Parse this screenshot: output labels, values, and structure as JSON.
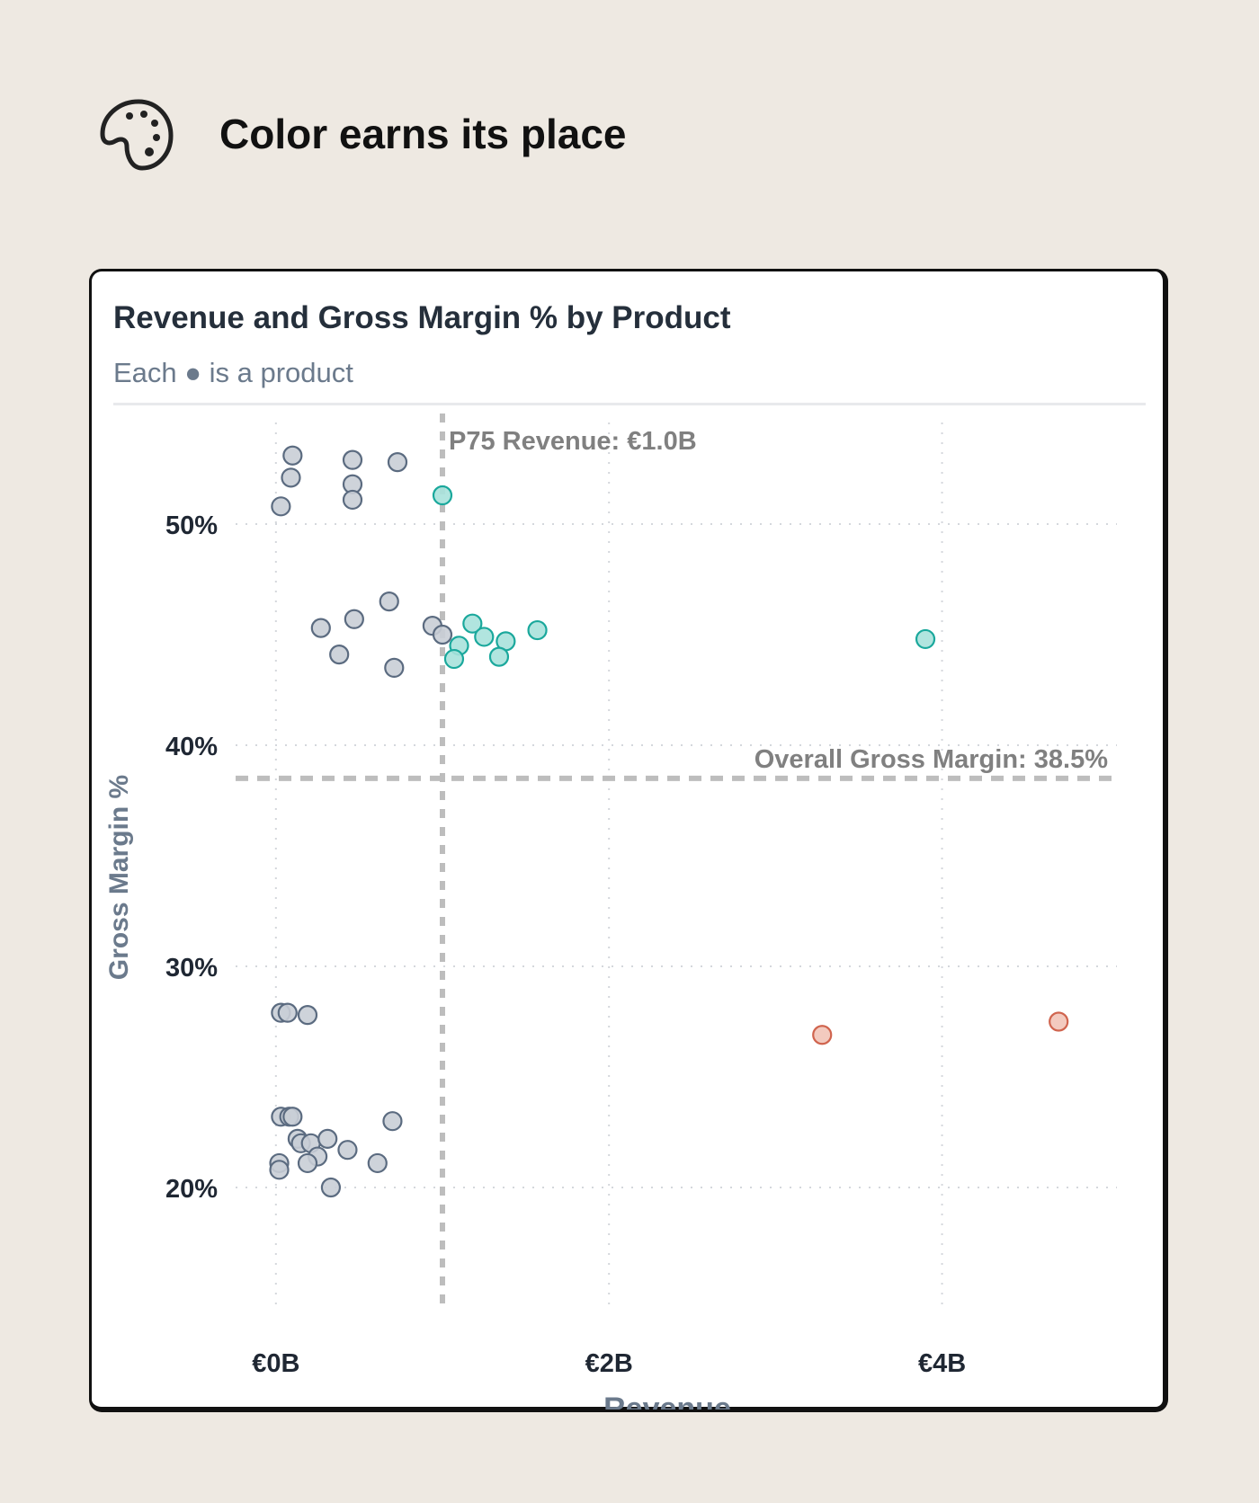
{
  "header": {
    "title": "Color earns its place",
    "icon": "palette-icon"
  },
  "chart_data": {
    "type": "scatter",
    "title": "Revenue and Gross Margin % by Product",
    "subtitle": "Each ● is a product",
    "xlabel": "Revenue",
    "ylabel": "Gross Margin %",
    "xlim": [
      -0.35,
      5.05
    ],
    "ylim": [
      15,
      55
    ],
    "x_ticks": [
      {
        "value": 0,
        "label": "€0B"
      },
      {
        "value": 2,
        "label": "€2B"
      },
      {
        "value": 4,
        "label": "€4B"
      }
    ],
    "y_ticks": [
      {
        "value": 20,
        "label": "20%"
      },
      {
        "value": 30,
        "label": "30%"
      },
      {
        "value": 40,
        "label": "40%"
      },
      {
        "value": 50,
        "label": "50%"
      }
    ],
    "grid": true,
    "reference_lines": [
      {
        "axis": "x",
        "value": 1.0,
        "label": "P75 Revenue: €1.0B"
      },
      {
        "axis": "y",
        "value": 38.5,
        "label": "Overall Gross Margin: 38.5%"
      }
    ],
    "colors": {
      "default": "#c9ced6",
      "default_stroke": "#5b6b80",
      "high_margin_high_revenue": "#a8e2dc",
      "high_margin_high_revenue_stroke": "#1aa89c",
      "low_margin_high_revenue": "#f2c4b8",
      "low_margin_high_revenue_stroke": "#d0644e"
    },
    "points": [
      {
        "x": 0.1,
        "y": 53.1,
        "group": "default"
      },
      {
        "x": 0.46,
        "y": 52.9,
        "group": "default"
      },
      {
        "x": 0.73,
        "y": 52.8,
        "group": "default"
      },
      {
        "x": 0.09,
        "y": 52.1,
        "group": "default"
      },
      {
        "x": 0.46,
        "y": 51.8,
        "group": "default"
      },
      {
        "x": 0.46,
        "y": 51.1,
        "group": "default"
      },
      {
        "x": 0.03,
        "y": 50.8,
        "group": "default"
      },
      {
        "x": 1.0,
        "y": 51.3,
        "group": "high_margin_high_revenue"
      },
      {
        "x": 0.68,
        "y": 46.5,
        "group": "default"
      },
      {
        "x": 0.47,
        "y": 45.7,
        "group": "default"
      },
      {
        "x": 0.27,
        "y": 45.3,
        "group": "default"
      },
      {
        "x": 0.94,
        "y": 45.4,
        "group": "default"
      },
      {
        "x": 1.0,
        "y": 45.0,
        "group": "default"
      },
      {
        "x": 0.38,
        "y": 44.1,
        "group": "default"
      },
      {
        "x": 0.71,
        "y": 43.5,
        "group": "default"
      },
      {
        "x": 1.18,
        "y": 45.5,
        "group": "high_margin_high_revenue"
      },
      {
        "x": 1.57,
        "y": 45.2,
        "group": "high_margin_high_revenue"
      },
      {
        "x": 1.25,
        "y": 44.9,
        "group": "high_margin_high_revenue"
      },
      {
        "x": 1.38,
        "y": 44.7,
        "group": "high_margin_high_revenue"
      },
      {
        "x": 1.1,
        "y": 44.5,
        "group": "high_margin_high_revenue"
      },
      {
        "x": 1.34,
        "y": 44.0,
        "group": "high_margin_high_revenue"
      },
      {
        "x": 1.07,
        "y": 43.9,
        "group": "high_margin_high_revenue"
      },
      {
        "x": 3.9,
        "y": 44.8,
        "group": "high_margin_high_revenue"
      },
      {
        "x": 0.03,
        "y": 27.9,
        "group": "default"
      },
      {
        "x": 0.07,
        "y": 27.9,
        "group": "default"
      },
      {
        "x": 0.19,
        "y": 27.8,
        "group": "default"
      },
      {
        "x": 3.28,
        "y": 26.9,
        "group": "low_margin_high_revenue"
      },
      {
        "x": 4.7,
        "y": 27.5,
        "group": "low_margin_high_revenue"
      },
      {
        "x": 0.03,
        "y": 23.2,
        "group": "default"
      },
      {
        "x": 0.08,
        "y": 23.2,
        "group": "default"
      },
      {
        "x": 0.1,
        "y": 23.2,
        "group": "default"
      },
      {
        "x": 0.7,
        "y": 23.0,
        "group": "default"
      },
      {
        "x": 0.13,
        "y": 22.2,
        "group": "default"
      },
      {
        "x": 0.15,
        "y": 22.0,
        "group": "default"
      },
      {
        "x": 0.21,
        "y": 22.0,
        "group": "default"
      },
      {
        "x": 0.31,
        "y": 22.2,
        "group": "default"
      },
      {
        "x": 0.43,
        "y": 21.7,
        "group": "default"
      },
      {
        "x": 0.25,
        "y": 21.4,
        "group": "default"
      },
      {
        "x": 0.02,
        "y": 21.1,
        "group": "default"
      },
      {
        "x": 0.19,
        "y": 21.1,
        "group": "default"
      },
      {
        "x": 0.61,
        "y": 21.1,
        "group": "default"
      },
      {
        "x": 0.02,
        "y": 20.8,
        "group": "default"
      },
      {
        "x": 0.33,
        "y": 20.0,
        "group": "default"
      }
    ]
  }
}
